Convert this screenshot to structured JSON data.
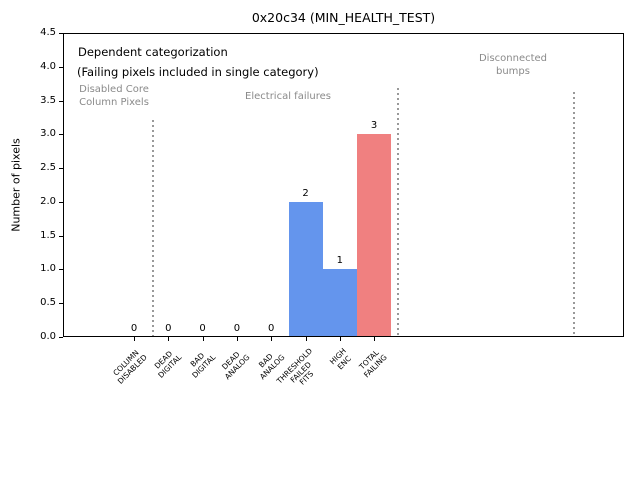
{
  "figure": {
    "title": "0x20c34 (MIN_HEALTH_TEST)",
    "ylabel": "Number of pixels",
    "note_line1": "Dependent categorization",
    "note_line2": "(Failing pixels included in single category)"
  },
  "sections": [
    {
      "label": "Disabled Core\nColumn Pixels"
    },
    {
      "label": "Electrical failures"
    },
    {
      "label": "Disconnected\nbumps"
    }
  ],
  "chart_data": {
    "type": "bar",
    "title": "0x20c34 (MIN_HEALTH_TEST)",
    "xlabel": "",
    "ylabel": "Number of pixels",
    "ylim": [
      0,
      4.5
    ],
    "yticks": [
      "0.0",
      "0.5",
      "1.0",
      "1.5",
      "2.0",
      "2.5",
      "3.0",
      "3.5",
      "4.0",
      "4.5"
    ],
    "grid": false,
    "legend": null,
    "categories": [
      "COLUMN\nDISABLED",
      "DEAD\nDIGITAL",
      "BAD\nDIGITAL",
      "DEAD\nANALOG",
      "BAD\nANALOG",
      "THRESHOLD\nFAILED\nFITS",
      "HIGH\nENC",
      "TOTAL\nFAILING"
    ],
    "values": [
      0,
      0,
      0,
      0,
      0,
      2,
      1,
      3
    ],
    "bar_labels": [
      "0",
      "0",
      "0",
      "0",
      "0",
      "2",
      "1",
      "3"
    ],
    "bar_colors": [
      "#6495ED",
      "#6495ED",
      "#6495ED",
      "#6495ED",
      "#6495ED",
      "#6495ED",
      "#6495ED",
      "#F08080"
    ],
    "annotations": [
      "Dependent categorization",
      "(Failing pixels included in single category)",
      "Disabled Core / Column Pixels",
      "Electrical failures",
      "Disconnected bumps"
    ],
    "colors": {
      "bar_blue": "#6495ED",
      "bar_red": "#F08080",
      "section_text": "#8a8a8a",
      "separator_dotted": "#999999"
    }
  }
}
